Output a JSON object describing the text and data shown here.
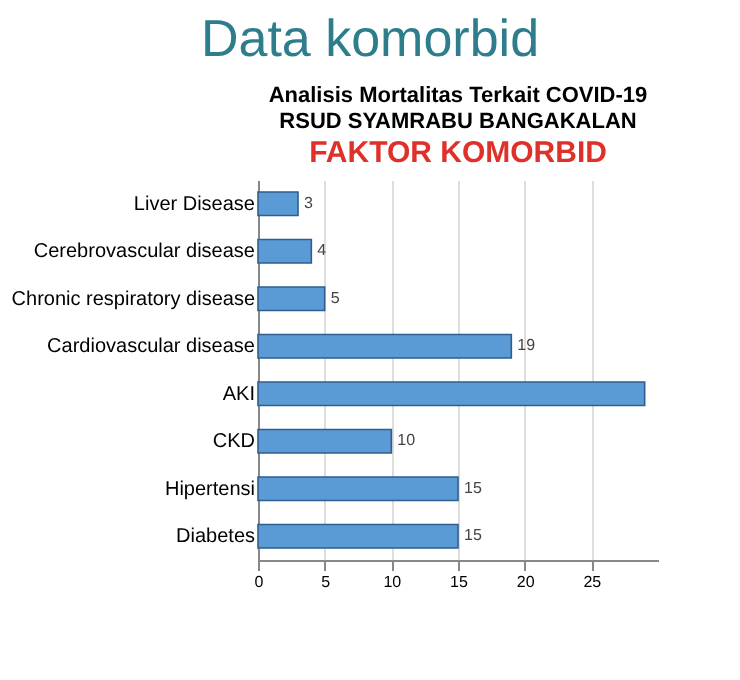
{
  "chart_data": {
    "type": "bar",
    "orientation": "horizontal",
    "title": "Data komorbid",
    "subtitle": "Analisis Mortalitas Terkait COVID-19\nRSUD SYAMRABU BANGAKALAN",
    "annotations": [
      "FAKTOR KOMORBID"
    ],
    "categories": [
      "Liver Disease",
      "Cerebrovascular disease",
      "Chronic respiratory disease",
      "Cardiovascular disease",
      "AKI",
      "CKD",
      "Hipertensi",
      "Diabetes"
    ],
    "values": [
      3,
      4,
      5,
      19,
      29,
      10,
      15,
      15
    ],
    "value_labels": [
      "3",
      "4",
      "5",
      "19",
      null,
      "10",
      "15",
      "15"
    ],
    "color": "#5b9bd5",
    "xlim": [
      0,
      30
    ],
    "xticks": [
      0,
      5,
      10,
      15,
      20,
      25
    ],
    "grid": "x"
  }
}
